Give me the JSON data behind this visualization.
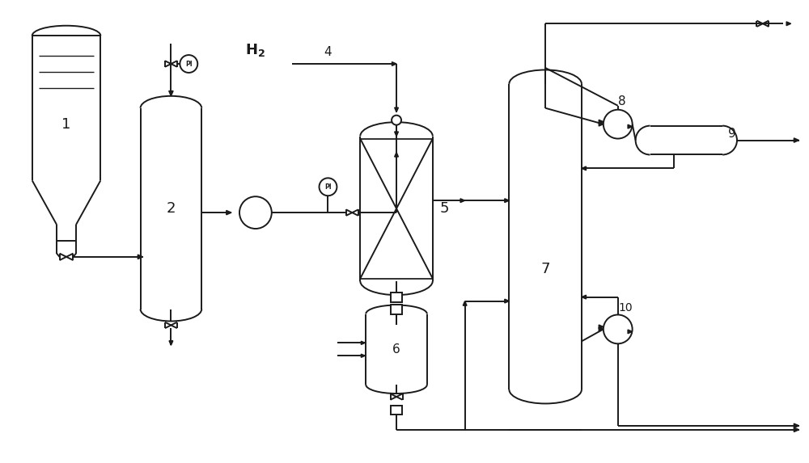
{
  "bg_color": "#ffffff",
  "lc": "#1a1a1a",
  "lw": 1.4,
  "fig_w": 10.0,
  "fig_h": 5.73
}
